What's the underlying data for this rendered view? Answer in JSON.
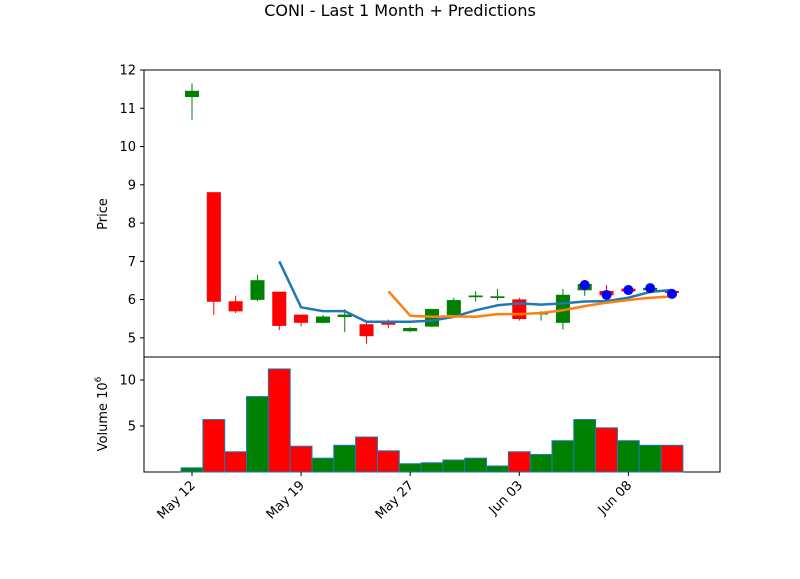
{
  "chart_data": {
    "type": "candlestick",
    "title": "CONI - Last 1 Month + Predictions",
    "price_panel": {
      "ylabel": "Price",
      "ylim": [
        4.5,
        12
      ],
      "yticks": [
        5,
        6,
        7,
        8,
        9,
        10,
        11,
        12
      ],
      "candles": [
        {
          "x": 0,
          "open": 11.3,
          "close": 11.45,
          "high": 11.65,
          "low": 10.7,
          "color": "green"
        },
        {
          "x": 1,
          "open": 8.8,
          "close": 5.95,
          "high": 8.8,
          "low": 5.6,
          "color": "red"
        },
        {
          "x": 2,
          "open": 5.95,
          "close": 5.7,
          "high": 6.1,
          "low": 5.65,
          "color": "red"
        },
        {
          "x": 3,
          "open": 6.0,
          "close": 6.5,
          "high": 6.65,
          "low": 5.95,
          "color": "green"
        },
        {
          "x": 4,
          "open": 6.2,
          "close": 5.32,
          "high": 6.2,
          "low": 5.2,
          "color": "red"
        },
        {
          "x": 5,
          "open": 5.6,
          "close": 5.4,
          "high": 5.6,
          "low": 5.3,
          "color": "red"
        },
        {
          "x": 6,
          "open": 5.4,
          "close": 5.55,
          "high": 5.6,
          "low": 5.38,
          "color": "green"
        },
        {
          "x": 7,
          "open": 5.55,
          "close": 5.6,
          "high": 5.75,
          "low": 5.15,
          "color": "green"
        },
        {
          "x": 8,
          "open": 5.35,
          "close": 5.05,
          "high": 5.4,
          "low": 4.85,
          "color": "red"
        },
        {
          "x": 9,
          "open": 5.4,
          "close": 5.35,
          "high": 5.48,
          "low": 5.25,
          "color": "red"
        },
        {
          "x": 10,
          "open": 5.18,
          "close": 5.25,
          "high": 5.28,
          "low": 5.15,
          "color": "green"
        },
        {
          "x": 11,
          "open": 5.3,
          "close": 5.75,
          "high": 5.75,
          "low": 5.28,
          "color": "green"
        },
        {
          "x": 12,
          "open": 5.6,
          "close": 5.98,
          "high": 6.05,
          "low": 5.55,
          "color": "green"
        },
        {
          "x": 13,
          "open": 6.08,
          "close": 6.1,
          "high": 6.22,
          "low": 5.95,
          "color": "green"
        },
        {
          "x": 14,
          "open": 6.05,
          "close": 6.08,
          "high": 6.28,
          "low": 5.98,
          "color": "green"
        },
        {
          "x": 15,
          "open": 6.0,
          "close": 5.5,
          "high": 6.05,
          "low": 5.45,
          "color": "red"
        },
        {
          "x": 16,
          "open": 5.62,
          "close": 5.65,
          "high": 5.7,
          "low": 5.45,
          "color": "green"
        },
        {
          "x": 17,
          "open": 5.4,
          "close": 6.12,
          "high": 6.28,
          "low": 5.22,
          "color": "green"
        },
        {
          "x": 18,
          "open": 6.25,
          "close": 6.4,
          "high": 6.45,
          "low": 6.1,
          "color": "green"
        },
        {
          "x": 19,
          "open": 6.22,
          "close": 6.12,
          "high": 6.38,
          "low": 6.05,
          "color": "red"
        },
        {
          "x": 20,
          "open": 6.28,
          "close": 6.22,
          "high": 6.32,
          "low": 6.15,
          "color": "red"
        },
        {
          "x": 21,
          "open": 6.25,
          "close": 6.3,
          "high": 6.35,
          "low": 6.2,
          "color": "green"
        },
        {
          "x": 22,
          "open": 6.22,
          "close": 6.18,
          "high": 6.25,
          "low": 6.1,
          "color": "red"
        }
      ],
      "series": [
        {
          "color": "#1f77b4",
          "x": [
            4,
            5,
            6,
            7,
            8,
            9,
            10,
            11,
            12,
            13,
            14,
            15,
            16,
            17,
            18,
            19,
            20,
            21,
            22
          ],
          "values": [
            7.0,
            5.8,
            5.7,
            5.7,
            5.42,
            5.42,
            5.42,
            5.45,
            5.55,
            5.72,
            5.85,
            5.9,
            5.87,
            5.9,
            5.95,
            5.96,
            6.05,
            6.2,
            6.25
          ]
        },
        {
          "color": "#ff7f0e",
          "x": [
            9,
            10,
            11,
            12,
            13,
            14,
            15,
            16,
            17,
            18,
            19,
            20,
            21,
            22
          ],
          "values": [
            6.22,
            5.58,
            5.55,
            5.56,
            5.55,
            5.62,
            5.62,
            5.65,
            5.72,
            5.83,
            5.92,
            5.99,
            6.05,
            6.08
          ]
        }
      ],
      "prediction_points": {
        "color": "#0000ff",
        "x": [
          18,
          19,
          20,
          21,
          22
        ],
        "values": [
          6.38,
          6.12,
          6.25,
          6.3,
          6.15
        ]
      }
    },
    "volume_panel": {
      "ylabel": "Volume  10",
      "ylabel_exponent": "6",
      "ylim": [
        0,
        12.5
      ],
      "yticks": [
        5,
        10
      ],
      "bars": [
        {
          "x": 0,
          "value": 0.45,
          "color": "green"
        },
        {
          "x": 1,
          "value": 5.7,
          "color": "red"
        },
        {
          "x": 2,
          "value": 2.2,
          "color": "red"
        },
        {
          "x": 3,
          "value": 8.2,
          "color": "green"
        },
        {
          "x": 4,
          "value": 11.2,
          "color": "red"
        },
        {
          "x": 5,
          "value": 2.8,
          "color": "red"
        },
        {
          "x": 6,
          "value": 1.5,
          "color": "green"
        },
        {
          "x": 7,
          "value": 2.9,
          "color": "green"
        },
        {
          "x": 8,
          "value": 3.8,
          "color": "red"
        },
        {
          "x": 9,
          "value": 2.3,
          "color": "red"
        },
        {
          "x": 10,
          "value": 0.9,
          "color": "green"
        },
        {
          "x": 11,
          "value": 1.0,
          "color": "green"
        },
        {
          "x": 12,
          "value": 1.3,
          "color": "green"
        },
        {
          "x": 13,
          "value": 1.5,
          "color": "green"
        },
        {
          "x": 14,
          "value": 0.65,
          "color": "green"
        },
        {
          "x": 15,
          "value": 2.2,
          "color": "red"
        },
        {
          "x": 16,
          "value": 1.9,
          "color": "green"
        },
        {
          "x": 17,
          "value": 3.4,
          "color": "green"
        },
        {
          "x": 18,
          "value": 5.7,
          "color": "green"
        },
        {
          "x": 19,
          "value": 4.8,
          "color": "red"
        },
        {
          "x": 20,
          "value": 3.4,
          "color": "green"
        },
        {
          "x": 21,
          "value": 2.9,
          "color": "green"
        },
        {
          "x": 22,
          "value": 2.9,
          "color": "red"
        }
      ]
    },
    "x_axis": {
      "xlim": [
        -2.2,
        24.2
      ],
      "ticks": [
        {
          "x": 0,
          "label": "May 12"
        },
        {
          "x": 5,
          "label": "May 19"
        },
        {
          "x": 10,
          "label": "May 27"
        },
        {
          "x": 15,
          "label": "Jun 03"
        },
        {
          "x": 20,
          "label": "Jun 08"
        }
      ]
    },
    "grid": false,
    "colors": {
      "up": "#008000",
      "down": "#ff0000",
      "bar_edge": "#1f77b4"
    }
  }
}
